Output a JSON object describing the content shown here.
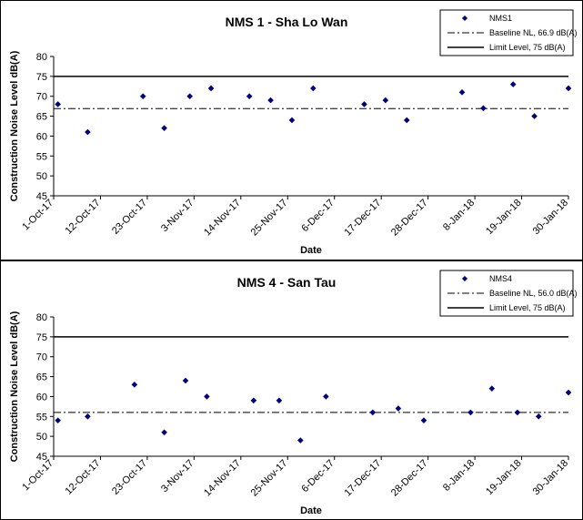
{
  "chart_data": [
    {
      "type": "scatter",
      "title": "NMS 1 - Sha Lo Wan",
      "xlabel": "Date",
      "ylabel": "Construction Noise Level  dB(A)",
      "xlim": [
        "2017-10-01",
        "2018-01-30"
      ],
      "ylim": [
        45,
        80
      ],
      "ytick_step": 5,
      "x_ticks": [
        "1-Oct-17",
        "12-Oct-17",
        "23-Oct-17",
        "3-Nov-17",
        "14-Nov-17",
        "25-Nov-17",
        "6-Dec-17",
        "17-Dec-17",
        "28-Dec-17",
        "8-Jan-18",
        "19-Jan-18",
        "30-Jan-18"
      ],
      "x_tick_dates": [
        "2017-10-01",
        "2017-10-12",
        "2017-10-23",
        "2017-11-03",
        "2017-11-14",
        "2017-11-25",
        "2017-12-06",
        "2017-12-17",
        "2017-12-28",
        "2018-01-08",
        "2018-01-19",
        "2018-01-30"
      ],
      "grid": false,
      "legend_position": "top-right",
      "series": [
        {
          "name": "NMS1",
          "kind": "marker",
          "color": "#000080",
          "x": [
            "2017-10-02",
            "2017-10-09",
            "2017-10-22",
            "2017-10-27",
            "2017-11-02",
            "2017-11-07",
            "2017-11-16",
            "2017-11-21",
            "2017-11-26",
            "2017-12-01",
            "2017-12-13",
            "2017-12-18",
            "2017-12-23",
            "2018-01-05",
            "2018-01-10",
            "2018-01-17",
            "2018-01-22",
            "2018-01-30"
          ],
          "y": [
            68,
            61,
            70,
            62,
            70,
            72,
            70,
            69,
            64,
            72,
            68,
            69,
            64,
            71,
            67,
            73,
            65,
            72
          ]
        }
      ],
      "reference_lines": [
        {
          "name": "Baseline NL, 66.9 dB(A)",
          "value": 66.9,
          "style": "dash-dot",
          "color": "#000000"
        },
        {
          "name": "Limit Level, 75 dB(A)",
          "value": 75,
          "style": "solid",
          "color": "#000000"
        }
      ]
    },
    {
      "type": "scatter",
      "title": "NMS 4 - San Tau",
      "xlabel": "Date",
      "ylabel": "Construction Noise Level  dB(A)",
      "xlim": [
        "2017-10-01",
        "2018-01-30"
      ],
      "ylim": [
        45,
        80
      ],
      "ytick_step": 5,
      "x_ticks": [
        "1-Oct-17",
        "12-Oct-17",
        "23-Oct-17",
        "3-Nov-17",
        "14-Nov-17",
        "25-Nov-17",
        "6-Dec-17",
        "17-Dec-17",
        "28-Dec-17",
        "8-Jan-18",
        "19-Jan-18",
        "30-Jan-18"
      ],
      "x_tick_dates": [
        "2017-10-01",
        "2017-10-12",
        "2017-10-23",
        "2017-11-03",
        "2017-11-14",
        "2017-11-25",
        "2017-12-06",
        "2017-12-17",
        "2017-12-28",
        "2018-01-08",
        "2018-01-19",
        "2018-01-30"
      ],
      "grid": false,
      "legend_position": "top-right",
      "series": [
        {
          "name": "NMS4",
          "kind": "marker",
          "color": "#000080",
          "x": [
            "2017-10-02",
            "2017-10-09",
            "2017-10-20",
            "2017-10-27",
            "2017-11-01",
            "2017-11-06",
            "2017-11-17",
            "2017-11-23",
            "2017-11-28",
            "2017-12-04",
            "2017-12-15",
            "2017-12-21",
            "2017-12-27",
            "2018-01-07",
            "2018-01-12",
            "2018-01-18",
            "2018-01-23",
            "2018-01-30"
          ],
          "y": [
            54,
            55,
            63,
            51,
            64,
            60,
            59,
            59,
            49,
            60,
            56,
            57,
            54,
            56,
            62,
            56,
            55,
            61
          ]
        }
      ],
      "reference_lines": [
        {
          "name": "Baseline NL, 56.0 dB(A)",
          "value": 56.0,
          "style": "dash-dot",
          "color": "#000000"
        },
        {
          "name": "Limit Level, 75 dB(A)",
          "value": 75,
          "style": "solid",
          "color": "#000000"
        }
      ]
    }
  ]
}
